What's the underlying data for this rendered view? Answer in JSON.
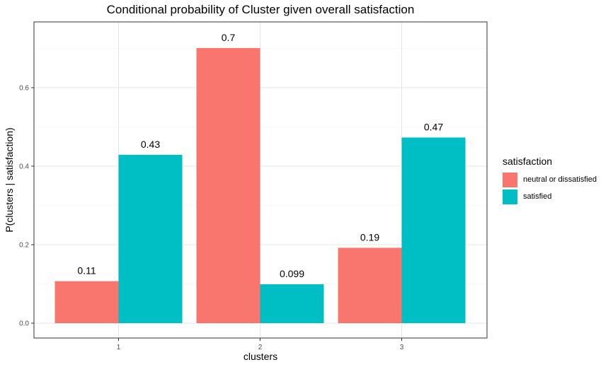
{
  "chart_data": {
    "type": "bar",
    "title": "Conditional probability of Cluster given overall satisfaction",
    "xlabel": "clusters",
    "ylabel": "P(clusters | satisfaction)",
    "categories": [
      "1",
      "2",
      "3"
    ],
    "ylim": [
      0,
      0.735
    ],
    "yticks": [
      0.0,
      0.2,
      0.4,
      0.6
    ],
    "ytick_labels": [
      "0.0",
      "0.2",
      "0.4",
      "0.6"
    ],
    "grid": true,
    "legend_title": "satisfaction",
    "legend_position": "right",
    "series": [
      {
        "name": "neutral or dissatisfied",
        "color": "#F8766D",
        "values": [
          0.107,
          0.701,
          0.192
        ],
        "labels": [
          "0.11",
          "0.7",
          "0.19"
        ]
      },
      {
        "name": "satisfied",
        "color": "#00BFC4",
        "values": [
          0.429,
          0.099,
          0.473
        ],
        "labels": [
          "0.43",
          "0.099",
          "0.47"
        ]
      }
    ]
  }
}
